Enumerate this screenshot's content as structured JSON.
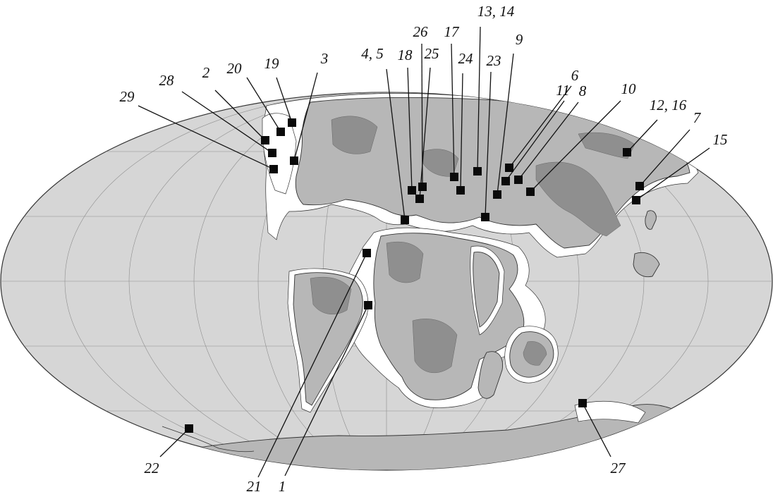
{
  "map": {
    "projection": "mollweide",
    "colors": {
      "ocean": "#d6d6d6",
      "land": "#b7b7b7",
      "upland": "#8f8f8f",
      "shelf": "#ffffff",
      "marker": "#0a0a0a",
      "outline": "#333333"
    },
    "sites": [
      {
        "id": "s-1",
        "label": "1"
      },
      {
        "id": "s-2",
        "label": "2"
      },
      {
        "id": "s-3",
        "label": "3"
      },
      {
        "id": "s-4-5",
        "label": "4, 5"
      },
      {
        "id": "s-6",
        "label": "6"
      },
      {
        "id": "s-7",
        "label": "7"
      },
      {
        "id": "s-8",
        "label": "8"
      },
      {
        "id": "s-9",
        "label": "9"
      },
      {
        "id": "s-10",
        "label": "10"
      },
      {
        "id": "s-11",
        "label": "11"
      },
      {
        "id": "s-12-16",
        "label": "12, 16"
      },
      {
        "id": "s-13-14",
        "label": "13, 14"
      },
      {
        "id": "s-15",
        "label": "15"
      },
      {
        "id": "s-17",
        "label": "17"
      },
      {
        "id": "s-18",
        "label": "18"
      },
      {
        "id": "s-19",
        "label": "19"
      },
      {
        "id": "s-20",
        "label": "20"
      },
      {
        "id": "s-21",
        "label": "21"
      },
      {
        "id": "s-22",
        "label": "22"
      },
      {
        "id": "s-23",
        "label": "23"
      },
      {
        "id": "s-24",
        "label": "24"
      },
      {
        "id": "s-25",
        "label": "25"
      },
      {
        "id": "s-26",
        "label": "26"
      },
      {
        "id": "s-27",
        "label": "27"
      },
      {
        "id": "s-28",
        "label": "28"
      },
      {
        "id": "s-29",
        "label": "29"
      }
    ]
  }
}
